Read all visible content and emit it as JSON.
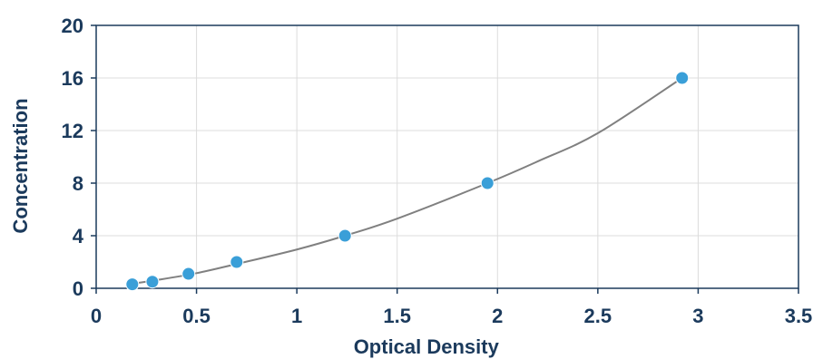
{
  "chart_data": {
    "type": "scatter",
    "title": "",
    "xlabel": "Optical Density",
    "ylabel": "Concentration",
    "xlim": [
      0,
      3.5
    ],
    "ylim": [
      0,
      20
    ],
    "x_ticks": [
      0,
      0.5,
      1,
      1.5,
      2,
      2.5,
      3,
      3.5
    ],
    "x_tick_labels": [
      "0",
      "0.5",
      "1",
      "1.5",
      "2",
      "2.5",
      "3",
      "3.5"
    ],
    "y_ticks": [
      0,
      4,
      8,
      12,
      16,
      20
    ],
    "y_tick_labels": [
      "0",
      "4",
      "8",
      "12",
      "16",
      "20"
    ],
    "grid": true,
    "legend": false,
    "series": [
      {
        "kind": "points",
        "x": [
          0.18,
          0.28,
          0.46,
          0.7,
          1.24,
          1.95,
          2.92
        ],
        "y": [
          0.3,
          0.5,
          1.1,
          2.0,
          4.0,
          8.0,
          16.0
        ],
        "color": "#3a9fd8"
      },
      {
        "kind": "fit-curve",
        "x": [
          0.18,
          0.3,
          0.5,
          0.7,
          1.0,
          1.24,
          1.5,
          1.95,
          2.2,
          2.5,
          2.92
        ],
        "y": [
          0.35,
          0.62,
          1.15,
          1.85,
          2.95,
          4.0,
          5.3,
          8.0,
          9.65,
          11.8,
          16.0
        ],
        "color": "#808080"
      }
    ]
  }
}
